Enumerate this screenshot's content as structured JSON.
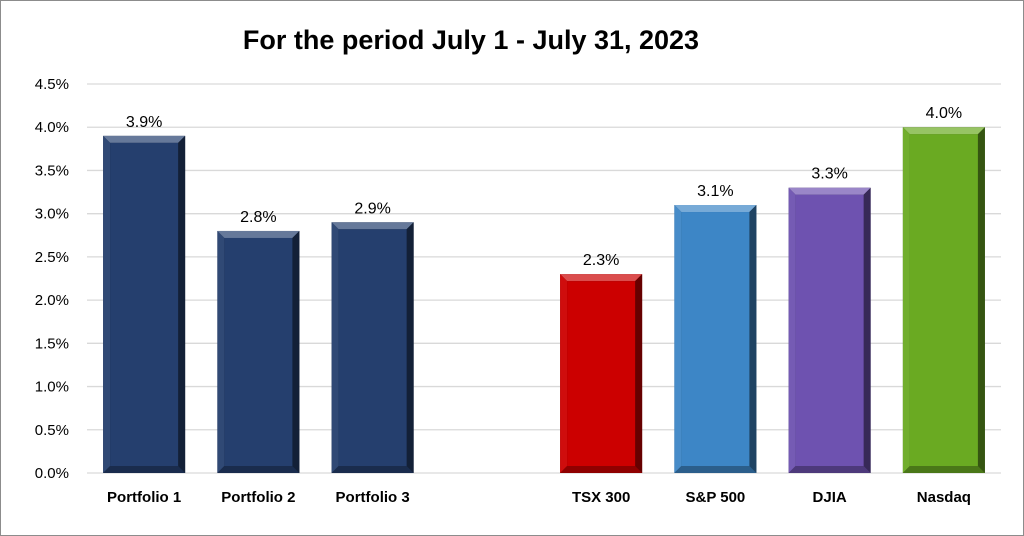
{
  "chart_data": {
    "type": "bar",
    "title": "For the period July 1 - July 31, 2023",
    "xlabel": "",
    "ylabel": "",
    "categories": [
      "Portfolio 1",
      "Portfolio 2",
      "Portfolio 3",
      "",
      "TSX 300",
      "S&P 500",
      "DJIA",
      "Nasdaq"
    ],
    "values": [
      3.9,
      2.8,
      2.9,
      null,
      2.3,
      3.1,
      3.3,
      4.0
    ],
    "data_labels": [
      "3.9%",
      "2.8%",
      "2.9%",
      "",
      "2.3%",
      "3.1%",
      "3.3%",
      "4.0%"
    ],
    "colors": [
      "#253f6e",
      "#253f6e",
      "#253f6e",
      "",
      "#cc0000",
      "#3d86c6",
      "#6e52b0",
      "#6aaa22"
    ],
    "ylim": [
      0,
      4.5
    ],
    "yticks": [
      "0.0%",
      "0.5%",
      "1.0%",
      "1.5%",
      "2.0%",
      "2.5%",
      "3.0%",
      "3.5%",
      "4.0%",
      "4.5%"
    ],
    "grid": true,
    "legend": "none"
  }
}
